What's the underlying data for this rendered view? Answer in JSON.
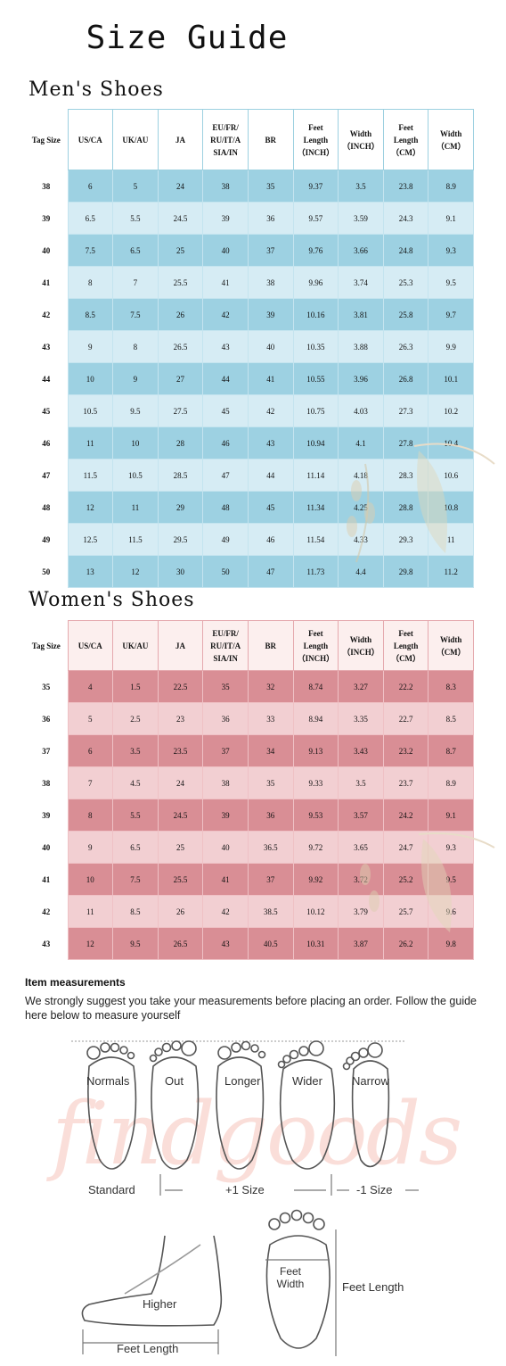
{
  "title": "Size Guide",
  "men": {
    "heading": "Men's Shoes",
    "headers": [
      "Tag Size",
      "US/CA",
      "UK/AU",
      "JA",
      "EU/FR/\nRU/IT/A\nSIA/IN",
      "BR",
      "Feet\nLength\n（INCH）",
      "Width\n（INCH）",
      "Feet\nLength\n（CM）",
      "Width\n（CM）"
    ],
    "rows": [
      [
        "38",
        "6",
        "5",
        "24",
        "38",
        "35",
        "9.37",
        "3.5",
        "23.8",
        "8.9"
      ],
      [
        "39",
        "6.5",
        "5.5",
        "24.5",
        "39",
        "36",
        "9.57",
        "3.59",
        "24.3",
        "9.1"
      ],
      [
        "40",
        "7.5",
        "6.5",
        "25",
        "40",
        "37",
        "9.76",
        "3.66",
        "24.8",
        "9.3"
      ],
      [
        "41",
        "8",
        "7",
        "25.5",
        "41",
        "38",
        "9.96",
        "3.74",
        "25.3",
        "9.5"
      ],
      [
        "42",
        "8.5",
        "7.5",
        "26",
        "42",
        "39",
        "10.16",
        "3.81",
        "25.8",
        "9.7"
      ],
      [
        "43",
        "9",
        "8",
        "26.5",
        "43",
        "40",
        "10.35",
        "3.88",
        "26.3",
        "9.9"
      ],
      [
        "44",
        "10",
        "9",
        "27",
        "44",
        "41",
        "10.55",
        "3.96",
        "26.8",
        "10.1"
      ],
      [
        "45",
        "10.5",
        "9.5",
        "27.5",
        "45",
        "42",
        "10.75",
        "4.03",
        "27.3",
        "10.2"
      ],
      [
        "46",
        "11",
        "10",
        "28",
        "46",
        "43",
        "10.94",
        "4.1",
        "27.8",
        "10.4"
      ],
      [
        "47",
        "11.5",
        "10.5",
        "28.5",
        "47",
        "44",
        "11.14",
        "4.18",
        "28.3",
        "10.6"
      ],
      [
        "48",
        "12",
        "11",
        "29",
        "48",
        "45",
        "11.34",
        "4.25",
        "28.8",
        "10.8"
      ],
      [
        "49",
        "12.5",
        "11.5",
        "29.5",
        "49",
        "46",
        "11.54",
        "4.33",
        "29.3",
        "11"
      ],
      [
        "50",
        "13",
        "12",
        "30",
        "50",
        "47",
        "11.73",
        "4.4",
        "29.8",
        "11.2"
      ]
    ]
  },
  "women": {
    "heading": "Women's Shoes",
    "headers": [
      "Tag Size",
      "US/CA",
      "UK/AU",
      "JA",
      "EU/FR/\nRU/IT/A\nSIA/IN",
      "BR",
      "Feet\nLength\n（INCH）",
      "Width\n（INCH）",
      "Feet\nLength\n（CM）",
      "Width\n（CM）"
    ],
    "rows": [
      [
        "35",
        "4",
        "1.5",
        "22.5",
        "35",
        "32",
        "8.74",
        "3.27",
        "22.2",
        "8.3"
      ],
      [
        "36",
        "5",
        "2.5",
        "23",
        "36",
        "33",
        "8.94",
        "3.35",
        "22.7",
        "8.5"
      ],
      [
        "37",
        "6",
        "3.5",
        "23.5",
        "37",
        "34",
        "9.13",
        "3.43",
        "23.2",
        "8.7"
      ],
      [
        "38",
        "7",
        "4.5",
        "24",
        "38",
        "35",
        "9.33",
        "3.5",
        "23.7",
        "8.9"
      ],
      [
        "39",
        "8",
        "5.5",
        "24.5",
        "39",
        "36",
        "9.53",
        "3.57",
        "24.2",
        "9.1"
      ],
      [
        "40",
        "9",
        "6.5",
        "25",
        "40",
        "36.5",
        "9.72",
        "3.65",
        "24.7",
        "9.3"
      ],
      [
        "41",
        "10",
        "7.5",
        "25.5",
        "41",
        "37",
        "9.92",
        "3.72",
        "25.2",
        "9.5"
      ],
      [
        "42",
        "11",
        "8.5",
        "26",
        "42",
        "38.5",
        "10.12",
        "3.79",
        "25.7",
        "9.6"
      ],
      [
        "43",
        "12",
        "9.5",
        "26.5",
        "43",
        "40.5",
        "10.31",
        "3.87",
        "26.2",
        "9.8"
      ]
    ]
  },
  "measurements": {
    "heading": "Item measurements",
    "text": "We strongly suggest you take your measurements before placing an order. Follow the guide here below to measure yourself",
    "foot_types": [
      "Normals",
      "Out",
      "Longer",
      "Wider",
      "Narrow"
    ],
    "size_labels": [
      "Standard",
      "+1 Size",
      "-1 Size"
    ],
    "higher_label": "Higher",
    "side_feet_length": "Feet Length",
    "feet_width_label": "Feet\nWidth",
    "feet_length_label": "Feet Length"
  },
  "watermark": "findgoods",
  "colors": {
    "men_dark": "#9dd1e2",
    "men_light": "#d6ecf4",
    "women_dark": "#d98e95",
    "women_light": "#f2cfd2"
  }
}
